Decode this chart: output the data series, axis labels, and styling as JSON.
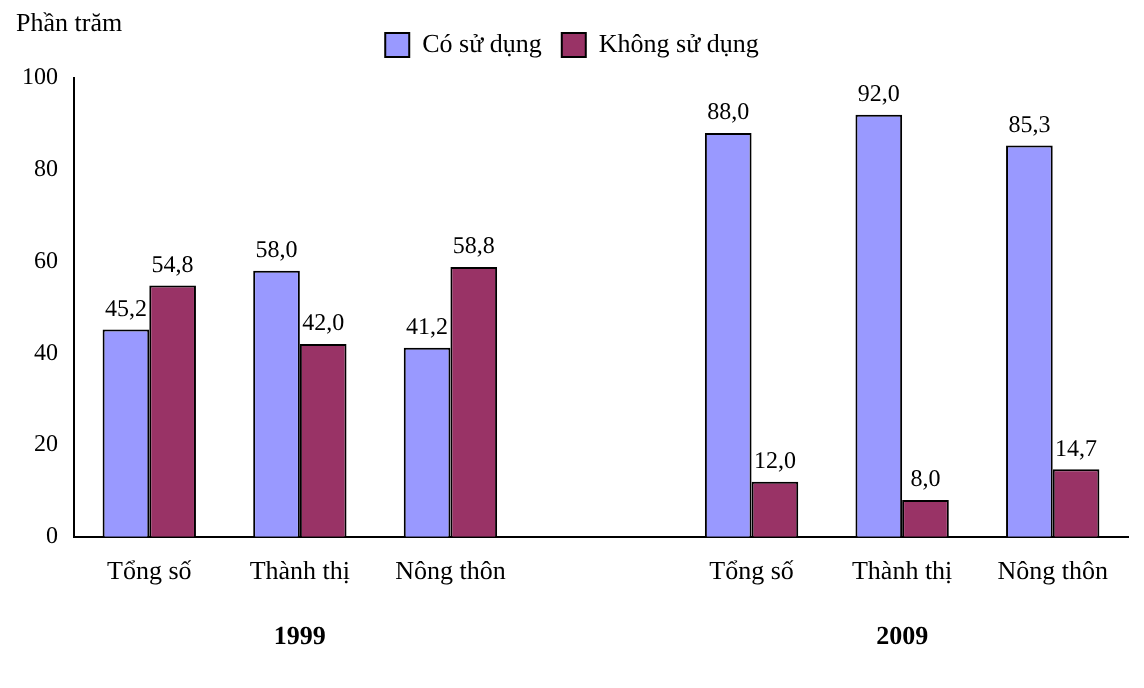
{
  "chart_data": {
    "type": "bar",
    "ylabel": "Phần trăm",
    "categories": [
      "Tổng số",
      "Thành thị",
      "Nông thôn",
      null,
      "Tổng số",
      "Thành thị",
      "Nông thôn"
    ],
    "series": [
      {
        "name": "Có sử dụng",
        "color": "#9999ff",
        "values": [
          45.2,
          58.0,
          41.2,
          null,
          88.0,
          92.0,
          85.3
        ],
        "value_labels": [
          "45,2",
          "58,0",
          "41,2",
          null,
          "88,0",
          "92,0",
          "85,3"
        ]
      },
      {
        "name": "Không sử dụng",
        "color": "#993366",
        "values": [
          54.8,
          42.0,
          58.8,
          null,
          12.0,
          8.0,
          14.7
        ],
        "value_labels": [
          "54,8",
          "42,0",
          "58,8",
          null,
          "12,0",
          "8,0",
          "14,7"
        ]
      }
    ],
    "ylim": [
      0,
      100
    ],
    "yticks": [
      0,
      20,
      40,
      60,
      80,
      100
    ],
    "grid": false,
    "legend": "top",
    "annotations": [
      "1999",
      "2009"
    ]
  }
}
